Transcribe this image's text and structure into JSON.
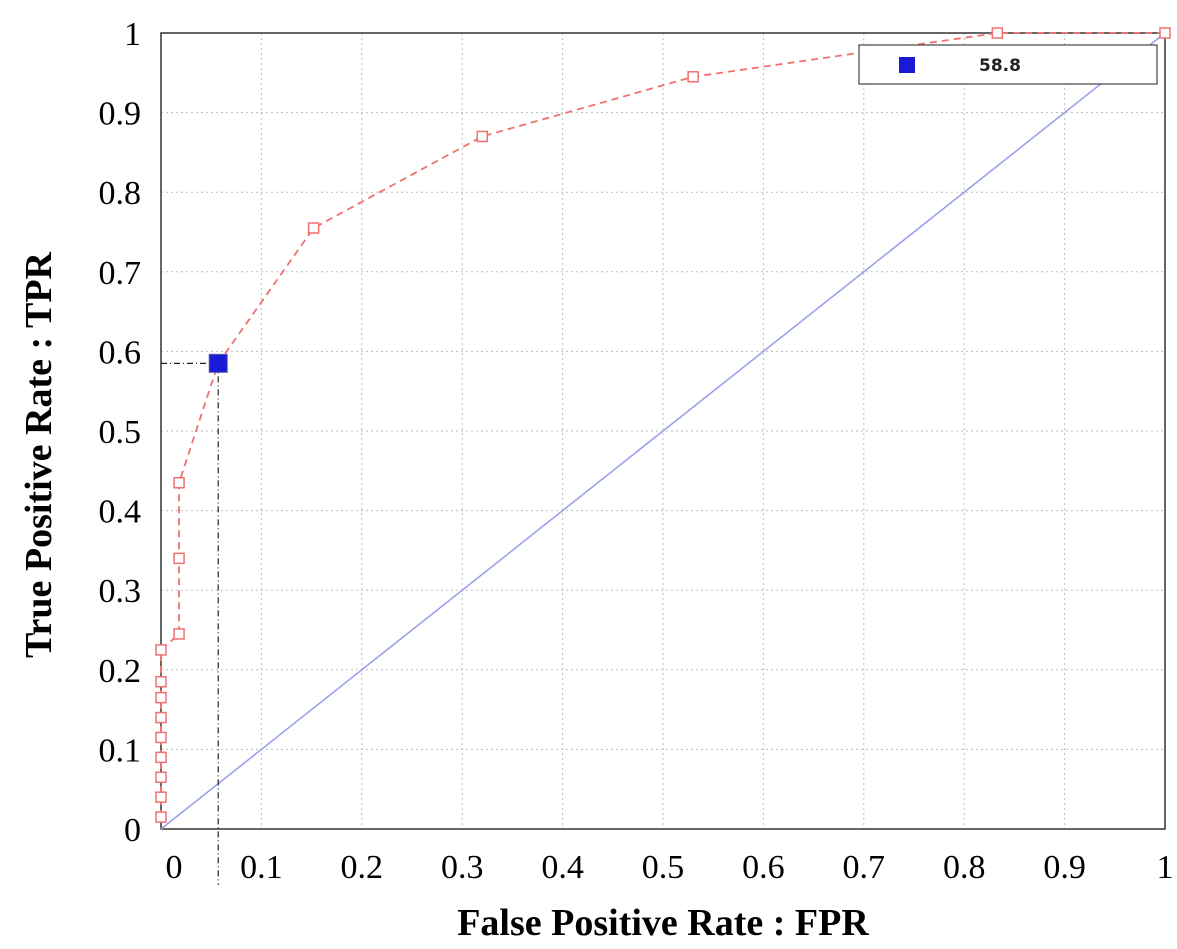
{
  "chart_data": {
    "type": "line",
    "xlabel": "False Positive Rate : FPR",
    "ylabel": "True Positive Rate : TPR",
    "xlim": [
      0,
      1
    ],
    "ylim": [
      0,
      1
    ],
    "x_ticks": [
      "0",
      "0.1",
      "0.2",
      "0.3",
      "0.4",
      "0.5",
      "0.6",
      "0.7",
      "0.8",
      "0.9",
      "1"
    ],
    "y_ticks": [
      "0",
      "0.1",
      "0.2",
      "0.3",
      "0.4",
      "0.5",
      "0.6",
      "0.7",
      "0.8",
      "0.9",
      "1"
    ],
    "grid": true,
    "legend_position": "top-right",
    "series": [
      {
        "style": "dashed-line-open-square-markers",
        "color": "#f07070",
        "x": [
          0,
          0,
          0,
          0,
          0,
          0,
          0,
          0,
          0,
          0.018,
          0.018,
          0.018,
          0.057,
          0.152,
          0.32,
          0.53,
          0.833,
          1.0
        ],
        "y": [
          0.015,
          0.04,
          0.065,
          0.09,
          0.115,
          0.14,
          0.165,
          0.185,
          0.225,
          0.245,
          0.34,
          0.435,
          0.585,
          0.755,
          0.87,
          0.945,
          1.0,
          1.0
        ]
      },
      {
        "style": "solid-diagonal-reference",
        "color": "#9aa0ee",
        "x": [
          0,
          1
        ],
        "y": [
          0,
          1
        ]
      }
    ],
    "highlight": {
      "name": "58.8",
      "x": 0.057,
      "y": 0.585,
      "color": "#1a1ad6"
    },
    "legend": [
      {
        "label": "58.8",
        "color": "#1a1ad6"
      }
    ]
  }
}
